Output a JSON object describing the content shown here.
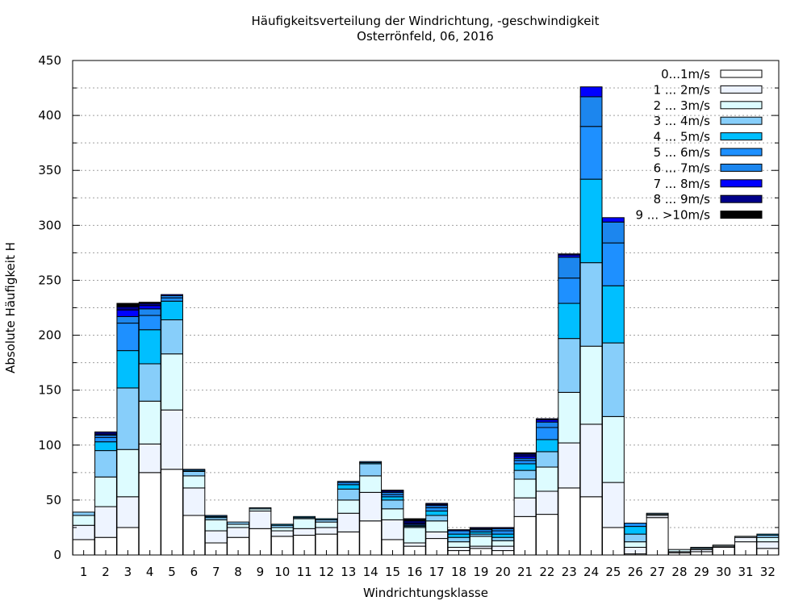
{
  "chart_data": {
    "type": "bar",
    "stacked": true,
    "title": "Häufigkeitsverteilung der Windrichtung, -geschwindigkeit",
    "subtitle": "Osterrönfeld, 06, 2016",
    "xlabel": "Windrichtungsklasse",
    "ylabel": "Absolute Häufigkeit H",
    "ylim": [
      0,
      450
    ],
    "yticks": [
      0,
      50,
      100,
      150,
      200,
      250,
      300,
      350,
      400,
      450
    ],
    "grid": true,
    "legend_position": "top-right",
    "categories": [
      "1",
      "2",
      "3",
      "4",
      "5",
      "6",
      "7",
      "8",
      "9",
      "10",
      "11",
      "12",
      "13",
      "14",
      "15",
      "16",
      "17",
      "18",
      "19",
      "20",
      "21",
      "22",
      "23",
      "24",
      "25",
      "26",
      "27",
      "28",
      "29",
      "30",
      "31",
      "32"
    ],
    "series": [
      {
        "name": "0...1m/s",
        "color": "#ffffff",
        "values": [
          14,
          16,
          25,
          75,
          78,
          36,
          11,
          16,
          24,
          17,
          18,
          19,
          21,
          31,
          14,
          8,
          15,
          4,
          6,
          4,
          35,
          37,
          61,
          53,
          25,
          1,
          34,
          2,
          3,
          7,
          12,
          6
        ]
      },
      {
        "name": "1 ... 2m/s",
        "color": "#eef4ff",
        "values": [
          13,
          28,
          28,
          26,
          54,
          25,
          11,
          9,
          16,
          5,
          6,
          6,
          17,
          26,
          18,
          3,
          6,
          3,
          2,
          4,
          17,
          21,
          41,
          66,
          41,
          6,
          2,
          1,
          2,
          1,
          4,
          6
        ]
      },
      {
        "name": "2 ... 3m/s",
        "color": "#ddfcff",
        "values": [
          9,
          27,
          43,
          39,
          51,
          11,
          10,
          3,
          2,
          3,
          9,
          5,
          12,
          15,
          10,
          14,
          10,
          5,
          9,
          5,
          17,
          22,
          46,
          71,
          60,
          5,
          1,
          2,
          1,
          1,
          1,
          4
        ]
      },
      {
        "name": "3 ... 4m/s",
        "color": "#87cefa",
        "values": [
          3,
          24,
          56,
          34,
          31,
          4,
          2,
          2,
          1,
          2,
          1,
          2,
          10,
          11,
          8,
          1,
          5,
          4,
          2,
          3,
          8,
          14,
          49,
          76,
          67,
          7,
          1,
          0,
          1,
          0,
          0,
          2
        ]
      },
      {
        "name": "4 ... 5m/s",
        "color": "#00bfff",
        "values": [
          0,
          8,
          34,
          31,
          17,
          1,
          1,
          0,
          0,
          1,
          1,
          1,
          4,
          1,
          3,
          1,
          4,
          3,
          2,
          3,
          6,
          11,
          32,
          76,
          52,
          7,
          0,
          0,
          0,
          0,
          0,
          1
        ]
      },
      {
        "name": "5 ... 6m/s",
        "color": "#1e90ff",
        "values": [
          0,
          4,
          25,
          13,
          3,
          1,
          1,
          0,
          0,
          0,
          0,
          0,
          2,
          1,
          2,
          1,
          3,
          3,
          2,
          3,
          3,
          11,
          23,
          48,
          39,
          3,
          0,
          0,
          0,
          0,
          0,
          0
        ]
      },
      {
        "name": "6 ... 7m/s",
        "color": "#1c86ee",
        "values": [
          0,
          2,
          6,
          6,
          2,
          0,
          0,
          0,
          0,
          0,
          0,
          0,
          1,
          0,
          2,
          0,
          2,
          0,
          1,
          2,
          2,
          5,
          19,
          27,
          19,
          0,
          0,
          0,
          0,
          0,
          0,
          0
        ]
      },
      {
        "name": "7 ... 8m/s",
        "color": "#0000ff",
        "values": [
          0,
          1,
          6,
          3,
          1,
          0,
          0,
          0,
          0,
          0,
          0,
          0,
          0,
          0,
          1,
          1,
          1,
          0,
          0,
          0,
          2,
          2,
          2,
          9,
          4,
          0,
          0,
          0,
          0,
          0,
          0,
          0
        ]
      },
      {
        "name": "8 ... 9m/s",
        "color": "#00008b",
        "values": [
          0,
          2,
          3,
          2,
          0,
          0,
          0,
          0,
          0,
          0,
          0,
          0,
          0,
          0,
          1,
          2,
          1,
          1,
          1,
          1,
          2,
          1,
          1,
          0,
          0,
          0,
          0,
          0,
          0,
          0,
          0,
          0
        ]
      },
      {
        "name": "9 ... >10m/s",
        "color": "#000000",
        "values": [
          0,
          0,
          3,
          1,
          0,
          0,
          0,
          0,
          0,
          0,
          0,
          0,
          0,
          0,
          0,
          2,
          0,
          0,
          0,
          0,
          1,
          0,
          0,
          0,
          0,
          0,
          0,
          0,
          0,
          0,
          0,
          0
        ]
      }
    ]
  }
}
